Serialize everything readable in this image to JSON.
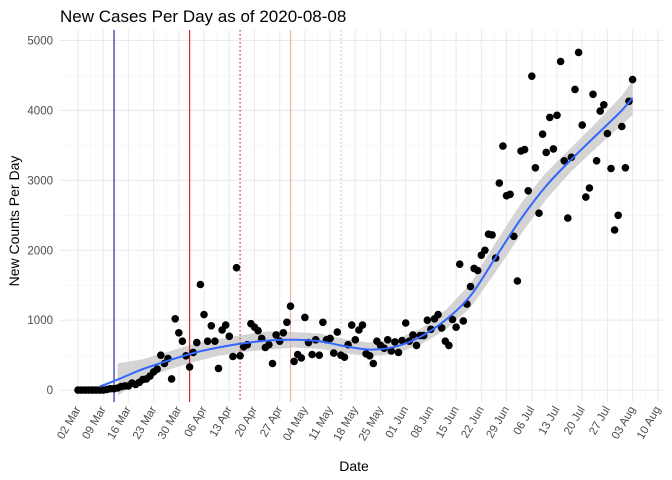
{
  "chart_data": {
    "type": "scatter",
    "title": "New Cases Per Day as of 2020-08-08",
    "xlabel": "Date",
    "ylabel": "New Counts Per Day",
    "x_ticks": [
      "02 Mar",
      "09 Mar",
      "16 Mar",
      "23 Mar",
      "30 Mar",
      "06 Apr",
      "13 Apr",
      "20 Apr",
      "27 Apr",
      "04 May",
      "11 May",
      "18 May",
      "25 May",
      "01 Jun",
      "08 Jun",
      "15 Jun",
      "22 Jun",
      "29 Jun",
      "06 Jul",
      "13 Jul",
      "20 Jul",
      "27 Jul",
      "03 Aug",
      "10 Aug"
    ],
    "xlim": [
      "2020-02-26",
      "2020-08-12"
    ],
    "y_ticks": [
      0,
      1000,
      2000,
      3000,
      4000,
      5000
    ],
    "ylim": [
      -170,
      5150
    ],
    "grid": true,
    "colors": {
      "points": "#000000",
      "trend_line": "#3366ff",
      "trend_band": "#cccccc",
      "vline_dark": "#00008b",
      "vline_red": "#cc0000",
      "vline_red_dotted": "#cc0000",
      "vline_pink": "#ffa0a0",
      "vline_pink_dotted": "#ffa0a0",
      "grid": "#ebebeb"
    },
    "vlines": [
      {
        "date": "2020-03-12",
        "style": "solid",
        "color_key": "vline_dark"
      },
      {
        "date": "2020-04-02",
        "style": "solid",
        "color_key": "vline_red"
      },
      {
        "date": "2020-04-16",
        "style": "dotted",
        "color_key": "vline_red_dotted"
      },
      {
        "date": "2020-04-30",
        "style": "solid",
        "color_key": "vline_pink"
      },
      {
        "date": "2020-05-14",
        "style": "dotted",
        "color_key": "vline_pink_dotted"
      }
    ],
    "points": [
      [
        "2020-03-02",
        0
      ],
      [
        "2020-03-03",
        0
      ],
      [
        "2020-03-04",
        0
      ],
      [
        "2020-03-05",
        0
      ],
      [
        "2020-03-06",
        0
      ],
      [
        "2020-03-07",
        0
      ],
      [
        "2020-03-08",
        0
      ],
      [
        "2020-03-09",
        0
      ],
      [
        "2020-03-10",
        10
      ],
      [
        "2020-03-11",
        20
      ],
      [
        "2020-03-12",
        20
      ],
      [
        "2020-03-13",
        30
      ],
      [
        "2020-03-14",
        50
      ],
      [
        "2020-03-15",
        60
      ],
      [
        "2020-03-16",
        60
      ],
      [
        "2020-03-17",
        100
      ],
      [
        "2020-03-18",
        80
      ],
      [
        "2020-03-19",
        110
      ],
      [
        "2020-03-20",
        150
      ],
      [
        "2020-03-21",
        160
      ],
      [
        "2020-03-22",
        200
      ],
      [
        "2020-03-23",
        260
      ],
      [
        "2020-03-24",
        300
      ],
      [
        "2020-03-25",
        500
      ],
      [
        "2020-03-26",
        380
      ],
      [
        "2020-03-27",
        450
      ],
      [
        "2020-03-28",
        160
      ],
      [
        "2020-03-29",
        1020
      ],
      [
        "2020-03-30",
        820
      ],
      [
        "2020-03-31",
        700
      ],
      [
        "2020-04-01",
        490
      ],
      [
        "2020-04-02",
        330
      ],
      [
        "2020-04-03",
        540
      ],
      [
        "2020-04-04",
        680
      ],
      [
        "2020-04-05",
        1510
      ],
      [
        "2020-04-06",
        1080
      ],
      [
        "2020-04-07",
        700
      ],
      [
        "2020-04-08",
        920
      ],
      [
        "2020-04-09",
        700
      ],
      [
        "2020-04-10",
        310
      ],
      [
        "2020-04-11",
        860
      ],
      [
        "2020-04-12",
        930
      ],
      [
        "2020-04-13",
        770
      ],
      [
        "2020-04-14",
        480
      ],
      [
        "2020-04-15",
        1750
      ],
      [
        "2020-04-16",
        490
      ],
      [
        "2020-04-17",
        620
      ],
      [
        "2020-04-18",
        650
      ],
      [
        "2020-04-19",
        950
      ],
      [
        "2020-04-20",
        900
      ],
      [
        "2020-04-21",
        850
      ],
      [
        "2020-04-22",
        740
      ],
      [
        "2020-04-23",
        610
      ],
      [
        "2020-04-24",
        650
      ],
      [
        "2020-04-25",
        380
      ],
      [
        "2020-04-26",
        790
      ],
      [
        "2020-04-27",
        700
      ],
      [
        "2020-04-28",
        820
      ],
      [
        "2020-04-29",
        970
      ],
      [
        "2020-04-30",
        1200
      ],
      [
        "2020-05-01",
        410
      ],
      [
        "2020-05-02",
        510
      ],
      [
        "2020-05-03",
        460
      ],
      [
        "2020-05-04",
        1040
      ],
      [
        "2020-05-05",
        680
      ],
      [
        "2020-05-06",
        510
      ],
      [
        "2020-05-07",
        720
      ],
      [
        "2020-05-08",
        500
      ],
      [
        "2020-05-09",
        970
      ],
      [
        "2020-05-10",
        720
      ],
      [
        "2020-05-11",
        740
      ],
      [
        "2020-05-12",
        530
      ],
      [
        "2020-05-13",
        830
      ],
      [
        "2020-05-14",
        500
      ],
      [
        "2020-05-15",
        470
      ],
      [
        "2020-05-16",
        650
      ],
      [
        "2020-05-17",
        930
      ],
      [
        "2020-05-18",
        720
      ],
      [
        "2020-05-19",
        860
      ],
      [
        "2020-05-20",
        930
      ],
      [
        "2020-05-21",
        520
      ],
      [
        "2020-05-22",
        490
      ],
      [
        "2020-05-23",
        380
      ],
      [
        "2020-05-24",
        700
      ],
      [
        "2020-05-25",
        640
      ],
      [
        "2020-05-26",
        600
      ],
      [
        "2020-05-27",
        720
      ],
      [
        "2020-05-28",
        560
      ],
      [
        "2020-05-29",
        690
      ],
      [
        "2020-05-30",
        540
      ],
      [
        "2020-05-31",
        710
      ],
      [
        "2020-06-01",
        960
      ],
      [
        "2020-06-02",
        700
      ],
      [
        "2020-06-03",
        790
      ],
      [
        "2020-06-04",
        640
      ],
      [
        "2020-06-05",
        780
      ],
      [
        "2020-06-06",
        780
      ],
      [
        "2020-06-07",
        1000
      ],
      [
        "2020-06-08",
        870
      ],
      [
        "2020-06-09",
        1020
      ],
      [
        "2020-06-10",
        1080
      ],
      [
        "2020-06-11",
        890
      ],
      [
        "2020-06-12",
        700
      ],
      [
        "2020-06-13",
        640
      ],
      [
        "2020-06-14",
        1010
      ],
      [
        "2020-06-15",
        900
      ],
      [
        "2020-06-16",
        1800
      ],
      [
        "2020-06-17",
        990
      ],
      [
        "2020-06-18",
        1230
      ],
      [
        "2020-06-19",
        1480
      ],
      [
        "2020-06-20",
        1740
      ],
      [
        "2020-06-21",
        1710
      ],
      [
        "2020-06-22",
        1930
      ],
      [
        "2020-06-23",
        2000
      ],
      [
        "2020-06-24",
        2230
      ],
      [
        "2020-06-25",
        2220
      ],
      [
        "2020-06-26",
        1890
      ],
      [
        "2020-06-27",
        2960
      ],
      [
        "2020-06-28",
        3490
      ],
      [
        "2020-06-29",
        2780
      ],
      [
        "2020-06-30",
        2800
      ],
      [
        "2020-07-01",
        2200
      ],
      [
        "2020-07-02",
        1560
      ],
      [
        "2020-07-03",
        3420
      ],
      [
        "2020-07-04",
        3440
      ],
      [
        "2020-07-05",
        2850
      ],
      [
        "2020-07-06",
        4490
      ],
      [
        "2020-07-07",
        3180
      ],
      [
        "2020-07-08",
        2530
      ],
      [
        "2020-07-09",
        3660
      ],
      [
        "2020-07-10",
        3400
      ],
      [
        "2020-07-11",
        3900
      ],
      [
        "2020-07-12",
        3450
      ],
      [
        "2020-07-13",
        3930
      ],
      [
        "2020-07-14",
        4700
      ],
      [
        "2020-07-15",
        3280
      ],
      [
        "2020-07-16",
        2460
      ],
      [
        "2020-07-17",
        3330
      ],
      [
        "2020-07-18",
        4300
      ],
      [
        "2020-07-19",
        4830
      ],
      [
        "2020-07-20",
        3790
      ],
      [
        "2020-07-21",
        2760
      ],
      [
        "2020-07-22",
        2890
      ],
      [
        "2020-07-23",
        4230
      ],
      [
        "2020-07-24",
        3280
      ],
      [
        "2020-07-25",
        3990
      ],
      [
        "2020-07-26",
        4080
      ],
      [
        "2020-07-27",
        3670
      ],
      [
        "2020-07-28",
        3170
      ],
      [
        "2020-07-29",
        2290
      ],
      [
        "2020-07-30",
        2500
      ],
      [
        "2020-07-31",
        3770
      ],
      [
        "2020-08-01",
        3180
      ],
      [
        "2020-08-02",
        4130
      ],
      [
        "2020-08-03",
        4440
      ]
    ],
    "trend": {
      "center": [
        [
          "2020-03-08",
          50
        ],
        [
          "2020-03-13",
          150
        ],
        [
          "2020-03-20",
          300
        ],
        [
          "2020-03-27",
          420
        ],
        [
          "2020-04-03",
          530
        ],
        [
          "2020-04-10",
          610
        ],
        [
          "2020-04-17",
          670
        ],
        [
          "2020-04-24",
          710
        ],
        [
          "2020-05-01",
          720
        ],
        [
          "2020-05-08",
          700
        ],
        [
          "2020-05-15",
          630
        ],
        [
          "2020-05-22",
          580
        ],
        [
          "2020-05-29",
          620
        ],
        [
          "2020-06-05",
          760
        ],
        [
          "2020-06-12",
          1000
        ],
        [
          "2020-06-19",
          1350
        ],
        [
          "2020-06-26",
          1900
        ],
        [
          "2020-07-03",
          2450
        ],
        [
          "2020-07-10",
          2920
        ],
        [
          "2020-07-17",
          3300
        ],
        [
          "2020-07-24",
          3650
        ],
        [
          "2020-07-31",
          4000
        ],
        [
          "2020-08-03",
          4180
        ]
      ],
      "upper": [
        [
          "2020-03-13",
          380
        ],
        [
          "2020-03-20",
          440
        ],
        [
          "2020-03-27",
          550
        ],
        [
          "2020-04-03",
          660
        ],
        [
          "2020-04-10",
          730
        ],
        [
          "2020-04-17",
          790
        ],
        [
          "2020-04-24",
          840
        ],
        [
          "2020-05-01",
          830
        ],
        [
          "2020-05-08",
          810
        ],
        [
          "2020-05-15",
          730
        ],
        [
          "2020-05-22",
          680
        ],
        [
          "2020-05-29",
          720
        ],
        [
          "2020-06-05",
          870
        ],
        [
          "2020-06-12",
          1140
        ],
        [
          "2020-06-19",
          1520
        ],
        [
          "2020-06-26",
          2110
        ],
        [
          "2020-07-03",
          2670
        ],
        [
          "2020-07-10",
          3110
        ],
        [
          "2020-07-17",
          3470
        ],
        [
          "2020-07-24",
          3830
        ],
        [
          "2020-07-31",
          4210
        ],
        [
          "2020-08-03",
          4420
        ]
      ],
      "lower": [
        [
          "2020-03-13",
          -80
        ],
        [
          "2020-03-20",
          160
        ],
        [
          "2020-03-27",
          290
        ],
        [
          "2020-04-03",
          400
        ],
        [
          "2020-04-10",
          490
        ],
        [
          "2020-04-17",
          550
        ],
        [
          "2020-04-24",
          580
        ],
        [
          "2020-05-01",
          610
        ],
        [
          "2020-05-08",
          590
        ],
        [
          "2020-05-15",
          530
        ],
        [
          "2020-05-22",
          480
        ],
        [
          "2020-05-29",
          520
        ],
        [
          "2020-06-05",
          650
        ],
        [
          "2020-06-12",
          860
        ],
        [
          "2020-06-19",
          1180
        ],
        [
          "2020-06-26",
          1690
        ],
        [
          "2020-07-03",
          2230
        ],
        [
          "2020-07-10",
          2730
        ],
        [
          "2020-07-17",
          3130
        ],
        [
          "2020-07-24",
          3470
        ],
        [
          "2020-07-31",
          3790
        ],
        [
          "2020-08-03",
          3940
        ]
      ]
    }
  }
}
